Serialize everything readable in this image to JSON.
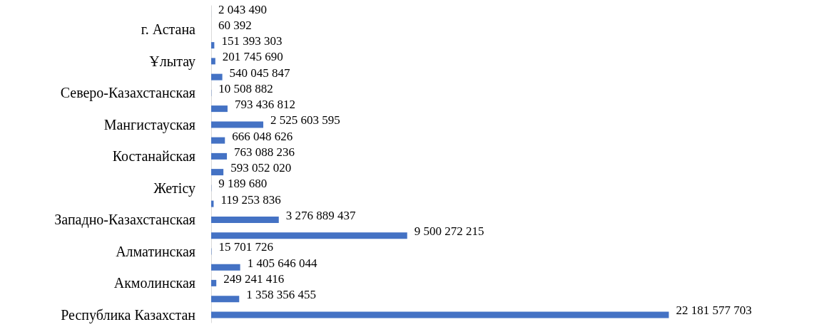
{
  "chart_data": {
    "type": "bar",
    "orientation": "horizontal",
    "color": "#4472c4",
    "categories": [
      null,
      "г. Астана",
      null,
      "Ұлытау",
      null,
      "Северо-Казахстанская",
      null,
      "Мангистауская",
      null,
      "Костанайская",
      null,
      "Жетісу",
      null,
      "Западно-Казахстанская",
      null,
      "Алматинская",
      null,
      "Акмолинская",
      null,
      "Республика Казахстан"
    ],
    "values": [
      2043490,
      60392,
      151393303,
      201745690,
      540045847,
      10508882,
      793436812,
      2525603595,
      666048626,
      763088236,
      593052020,
      9189680,
      119253836,
      3276889437,
      9500272215,
      15701726,
      1405646044,
      249241416,
      1358356455,
      22181577703
    ],
    "value_labels": [
      "2 043 490",
      "60 392",
      "151 393 303",
      "201 745 690",
      "540 045 847",
      "10 508 882",
      "793 436 812",
      "2 525 603 595",
      "666 048 626",
      "763 088 236",
      "593 052 020",
      "9 189 680",
      "119 253 836",
      "3 276 889 437",
      "9 500 272 215",
      "15 701 726",
      "1 405 646 044",
      "249 241 416",
      "1 358 356 455",
      "22 181 577 703"
    ]
  }
}
